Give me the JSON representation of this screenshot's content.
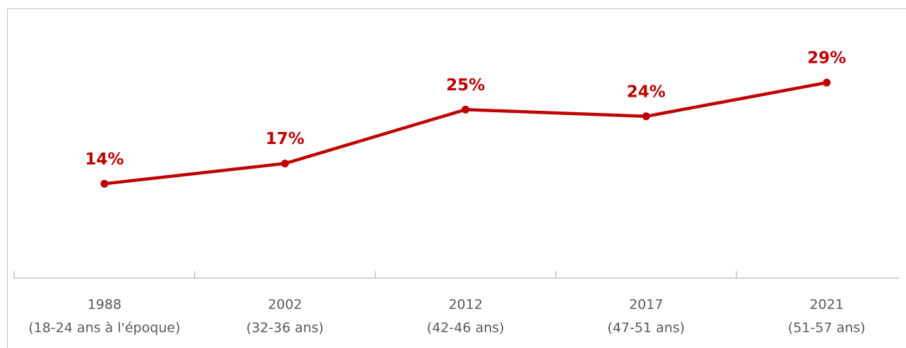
{
  "chart_data": {
    "type": "line",
    "categories": [
      [
        "1988",
        "(18-24 ans à l'époque)"
      ],
      [
        "2002",
        "(32-36 ans)"
      ],
      [
        "2012",
        "(42-46 ans)"
      ],
      [
        "2017",
        "(47-51 ans)"
      ],
      [
        "2021",
        "(51-57 ans)"
      ]
    ],
    "series": [
      {
        "color": "#c00000",
        "values": [
          14,
          17,
          25,
          24,
          29
        ],
        "value_labels": [
          "14%",
          "17%",
          "25%",
          "24%",
          "29%"
        ]
      }
    ],
    "ylim": [
      0,
      40
    ]
  }
}
